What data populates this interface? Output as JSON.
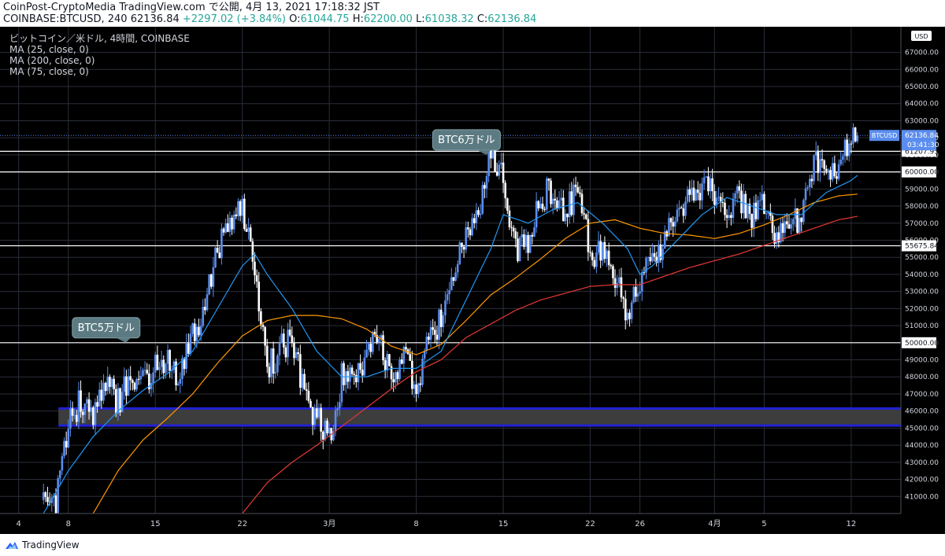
{
  "header": {
    "line1": "CoinPost-CryptoMedia TradingView.com で公開, 4月 13, 2021 17:18:32 JST",
    "symbol": "COINBASE:BTCUSD, 240",
    "price": "62136.84",
    "change": "+2297.02 (+3.84%)",
    "o_label": "O:",
    "o": "61044.75",
    "h_label": "H:",
    "h": "62200.00",
    "l_label": "L:",
    "l": "61038.32",
    "c_label": "C:",
    "c": "62136.84"
  },
  "legend": [
    "ビットコイン／米ドル, 4時間, COINBASE",
    "MA (25, close, 0)",
    "MA (200, close, 0)",
    "MA (75, close, 0)"
  ],
  "footer": {
    "brand": "TradingView"
  },
  "colors": {
    "up": "#5b8def",
    "down": "#ffffff",
    "ma25": "#2196f3",
    "ma75": "#ff9800",
    "ma200": "#e53935",
    "zone": "#3d3d3d",
    "zone_border": "#2121d6",
    "grid": "#2a2e39"
  },
  "chart_data": {
    "type": "candlestick",
    "currency": "USD",
    "symbol_label": "BTCUSD",
    "current_price": "62136.84",
    "countdown": "03:41:30",
    "ylim": [
      40000,
      68500
    ],
    "y_ticks": [
      41000,
      42000,
      43000,
      44000,
      45000,
      46000,
      47000,
      48000,
      49000,
      50000,
      51000,
      52000,
      53000,
      54000,
      55000,
      56000,
      57000,
      58000,
      59000,
      60000,
      61000,
      62000,
      63000,
      64000,
      65000,
      66000,
      67000
    ],
    "x_ticks": [
      "4",
      "8",
      "15",
      "22",
      "3月",
      "8",
      "15",
      "22",
      "26",
      "4月",
      "5",
      "12"
    ],
    "x_tick_days": [
      -24,
      -20,
      -13,
      -6,
      1,
      8,
      15,
      22,
      26,
      32,
      36,
      43
    ],
    "x_range_days": [
      -25.5,
      47
    ],
    "horizontal_lines": [
      {
        "price": 61207.95,
        "label": "61207.95"
      },
      {
        "price": 60000,
        "label": "60000.00"
      },
      {
        "price": 55675.84,
        "label": "55675.84"
      },
      {
        "price": 50000,
        "label": "50000.00"
      }
    ],
    "zone": {
      "low": 45150,
      "high": 46150
    },
    "annotations": [
      {
        "text": "BTC5万ドル",
        "day": -15.5,
        "price": 50000
      },
      {
        "text": "BTC6万ドル",
        "day": 13.5,
        "price": 61000
      }
    ],
    "price_path_anchors": [
      [
        -22,
        40800
      ],
      [
        -21,
        40500
      ],
      [
        -20,
        45500
      ],
      [
        -19,
        46500
      ],
      [
        -18,
        45500
      ],
      [
        -17,
        47500
      ],
      [
        -16,
        46500
      ],
      [
        -15,
        48000
      ],
      [
        -14,
        47500
      ],
      [
        -13,
        48500
      ],
      [
        -12,
        49000
      ],
      [
        -11,
        48000
      ],
      [
        -10,
        50500
      ],
      [
        -9,
        52000
      ],
      [
        -8,
        55500
      ],
      [
        -7,
        57000
      ],
      [
        -6,
        57800
      ],
      [
        -5,
        54500
      ],
      [
        -4,
        48500
      ],
      [
        -3,
        49500
      ],
      [
        -2,
        50500
      ],
      [
        -1,
        47000
      ],
      [
        0,
        45500
      ],
      [
        1,
        44500
      ],
      [
        2,
        48000
      ],
      [
        3,
        48500
      ],
      [
        4,
        49000
      ],
      [
        5,
        50500
      ],
      [
        6,
        48000
      ],
      [
        7,
        49000
      ],
      [
        8,
        47500
      ],
      [
        9,
        50000
      ],
      [
        10,
        51500
      ],
      [
        11,
        54000
      ],
      [
        12,
        56000
      ],
      [
        13,
        57500
      ],
      [
        14,
        61200
      ],
      [
        15,
        59500
      ],
      [
        16,
        55500
      ],
      [
        17,
        56000
      ],
      [
        18,
        58500
      ],
      [
        19,
        59000
      ],
      [
        20,
        57500
      ],
      [
        21,
        59000
      ],
      [
        22,
        55500
      ],
      [
        23,
        55000
      ],
      [
        24,
        54000
      ],
      [
        25,
        51500
      ],
      [
        26,
        53500
      ],
      [
        27,
        55000
      ],
      [
        28,
        56000
      ],
      [
        29,
        57500
      ],
      [
        30,
        58500
      ],
      [
        31,
        59000
      ],
      [
        32,
        58800
      ],
      [
        33,
        57500
      ],
      [
        34,
        58500
      ],
      [
        35,
        57500
      ],
      [
        36,
        58000
      ],
      [
        37,
        56000
      ],
      [
        38,
        56500
      ],
      [
        39,
        57500
      ],
      [
        40,
        60500
      ],
      [
        41,
        60000
      ],
      [
        42,
        60500
      ],
      [
        43,
        61500
      ],
      [
        43.5,
        62137
      ]
    ],
    "ma25_anchors": [
      [
        -22,
        40000
      ],
      [
        -20,
        42500
      ],
      [
        -18,
        44500
      ],
      [
        -16,
        46000
      ],
      [
        -14,
        47200
      ],
      [
        -12,
        48200
      ],
      [
        -10,
        49500
      ],
      [
        -8,
        52000
      ],
      [
        -6,
        54500
      ],
      [
        -5,
        55200
      ],
      [
        -4,
        54000
      ],
      [
        -2,
        52000
      ],
      [
        0,
        49500
      ],
      [
        2,
        48000
      ],
      [
        4,
        48000
      ],
      [
        6,
        48500
      ],
      [
        8,
        48500
      ],
      [
        10,
        49500
      ],
      [
        12,
        52500
      ],
      [
        14,
        55500
      ],
      [
        15,
        57500
      ],
      [
        17,
        57000
      ],
      [
        19,
        57800
      ],
      [
        21,
        58200
      ],
      [
        23,
        57000
      ],
      [
        25,
        55500
      ],
      [
        26,
        54000
      ],
      [
        27,
        54500
      ],
      [
        29,
        56000
      ],
      [
        31,
        57500
      ],
      [
        33,
        58500
      ],
      [
        35,
        58000
      ],
      [
        37,
        57500
      ],
      [
        39,
        57500
      ],
      [
        41,
        58800
      ],
      [
        43,
        59500
      ],
      [
        43.5,
        59800
      ]
    ],
    "ma75_anchors": [
      [
        -18,
        40000
      ],
      [
        -16,
        42500
      ],
      [
        -14,
        44300
      ],
      [
        -12,
        45600
      ],
      [
        -10,
        47000
      ],
      [
        -8,
        48800
      ],
      [
        -6,
        50400
      ],
      [
        -4,
        51300
      ],
      [
        -2,
        51600
      ],
      [
        0,
        51600
      ],
      [
        2,
        51400
      ],
      [
        4,
        50800
      ],
      [
        6,
        49800
      ],
      [
        8,
        49300
      ],
      [
        10,
        49900
      ],
      [
        12,
        51300
      ],
      [
        14,
        52800
      ],
      [
        16,
        53800
      ],
      [
        18,
        54900
      ],
      [
        20,
        56100
      ],
      [
        22,
        57000
      ],
      [
        24,
        57200
      ],
      [
        26,
        56700
      ],
      [
        28,
        56400
      ],
      [
        30,
        56300
      ],
      [
        32,
        56100
      ],
      [
        34,
        56400
      ],
      [
        36,
        56900
      ],
      [
        38,
        57500
      ],
      [
        40,
        58200
      ],
      [
        42,
        58600
      ],
      [
        43.5,
        58700
      ]
    ],
    "ma200_anchors": [
      [
        -6,
        40000
      ],
      [
        -4,
        41800
      ],
      [
        -2,
        43000
      ],
      [
        0,
        44000
      ],
      [
        2,
        45100
      ],
      [
        4,
        46200
      ],
      [
        6,
        47300
      ],
      [
        8,
        48300
      ],
      [
        10,
        49000
      ],
      [
        12,
        50300
      ],
      [
        14,
        51100
      ],
      [
        16,
        51900
      ],
      [
        18,
        52500
      ],
      [
        20,
        52900
      ],
      [
        22,
        53300
      ],
      [
        24,
        53400
      ],
      [
        26,
        53400
      ],
      [
        28,
        53900
      ],
      [
        30,
        54400
      ],
      [
        32,
        54800
      ],
      [
        34,
        55200
      ],
      [
        36,
        55700
      ],
      [
        38,
        56200
      ],
      [
        40,
        56700
      ],
      [
        42,
        57200
      ],
      [
        43.5,
        57400
      ]
    ]
  }
}
